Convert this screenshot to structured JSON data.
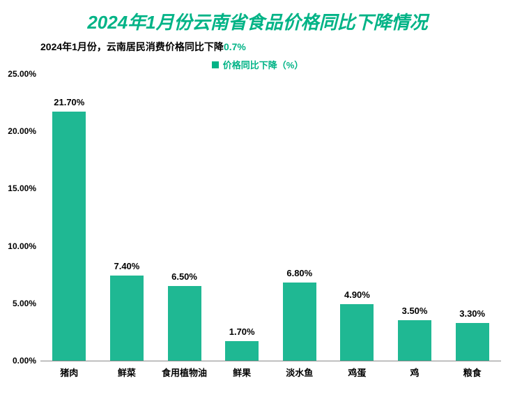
{
  "chart": {
    "type": "bar",
    "title": "2024年1月份云南省食品价格同比下降情况",
    "title_color": "#00b386",
    "title_fontsize": 26,
    "subtitle_prefix": "2024年1月份，云南居民消费价格同比下降",
    "subtitle_highlight": "0.7%",
    "subtitle_fontsize": 14,
    "subtitle_color": "#000000",
    "subtitle_highlight_color": "#00b386",
    "legend_label": "价格同比下降（%）",
    "legend_color": "#00b386",
    "legend_fontsize": 13,
    "categories": [
      "猪肉",
      "鲜菜",
      "食用植物油",
      "鲜果",
      "淡水鱼",
      "鸡蛋",
      "鸡",
      "粮食"
    ],
    "values": [
      21.7,
      7.4,
      6.5,
      1.7,
      6.8,
      4.9,
      3.5,
      3.3
    ],
    "value_labels": [
      "21.70%",
      "7.40%",
      "6.50%",
      "1.70%",
      "6.80%",
      "4.90%",
      "3.50%",
      "3.30%"
    ],
    "bar_color": "#1fb893",
    "bar_width_pct": 58,
    "ylim": [
      0,
      25
    ],
    "ytick_step": 5,
    "ytick_labels": [
      "0.00%",
      "5.00%",
      "10.00%",
      "15.00%",
      "20.00%",
      "25.00%"
    ],
    "axis_label_fontsize": 12,
    "axis_label_color": "#000000",
    "value_label_fontsize": 13,
    "category_label_fontsize": 13,
    "background_color": "#ffffff",
    "axis_line_color": "#888888"
  }
}
